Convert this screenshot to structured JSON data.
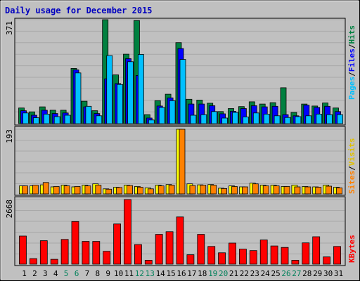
{
  "chart_data": {
    "type": "bar",
    "title": "Daily usage for December 2015",
    "categories": [
      "1",
      "2",
      "3",
      "4",
      "5",
      "6",
      "7",
      "8",
      "9",
      "10",
      "11",
      "12",
      "13",
      "14",
      "15",
      "16",
      "17",
      "18",
      "19",
      "20",
      "21",
      "22",
      "23",
      "24",
      "25",
      "26",
      "27",
      "28",
      "29",
      "30",
      "31"
    ],
    "weekend_days": [
      "5",
      "6",
      "12",
      "13",
      "19",
      "20",
      "26",
      "27"
    ],
    "panels": [
      {
        "id": "hits",
        "ymax_label": "371",
        "ymax": 371,
        "grid": true,
        "legend": [
          {
            "label": "Pages",
            "color": "#00c0ff"
          },
          {
            "label": "Files",
            "color": "#0000ff"
          },
          {
            "label": "Hits",
            "color": "#008040"
          }
        ],
        "series": [
          {
            "name": "Hits",
            "color": "#008040",
            "values": [
              56,
              42,
              60,
              48,
              48,
              197,
              80,
              46,
              371,
              174,
              248,
              368,
              32,
              82,
              105,
              289,
              87,
              84,
              73,
              43,
              54,
              61,
              78,
              70,
              75,
              128,
              40,
              70,
              63,
              74,
              56
            ]
          },
          {
            "name": "Files",
            "color": "#0000ff",
            "values": [
              46,
              30,
              48,
              36,
              38,
              192,
              60,
              36,
              160,
              143,
              232,
              172,
              20,
              63,
              92,
              268,
              70,
              70,
              64,
              35,
              44,
              54,
              64,
              60,
              62,
              32,
              28,
              66,
              58,
              62,
              43
            ]
          },
          {
            "name": "Pages",
            "color": "#00c0ff",
            "values": [
              38,
              21,
              34,
              25,
              30,
              181,
              62,
              28,
              243,
              140,
              221,
              247,
              13,
              58,
              82,
              229,
              30,
              32,
              43,
              20,
              40,
              24,
              38,
              34,
              28,
              22,
              25,
              28,
              34,
              32,
              32
            ]
          }
        ]
      },
      {
        "id": "visits",
        "ymax_label": "193",
        "ymax": 193,
        "grid": true,
        "legend": [
          {
            "label": "Sites",
            "color": "#ff8000"
          },
          {
            "label": "Visits",
            "color": "#ffff00"
          }
        ],
        "series": [
          {
            "name": "Visits",
            "color": "#ffff00",
            "values": [
              24,
              24,
              27,
              21,
              26,
              21,
              26,
              30,
              15,
              20,
              26,
              22,
              18,
              26,
              28,
              193,
              30,
              27,
              28,
              17,
              24,
              21,
              32,
              26,
              26,
              22,
              26,
              22,
              21,
              26,
              20
            ]
          },
          {
            "name": "Sites",
            "color": "#ff8000",
            "values": [
              24,
              26,
              34,
              22,
              24,
              22,
              24,
              26,
              14,
              19,
              25,
              20,
              15,
              24,
              26,
              193,
              25,
              26,
              26,
              16,
              22,
              21,
              30,
              24,
              24,
              22,
              21,
              21,
              20,
              23,
              18
            ]
          }
        ]
      },
      {
        "id": "kbytes",
        "ymax_label": "2668",
        "ymax": 2668,
        "grid": true,
        "legend": [
          {
            "label": "KBytes",
            "color": "#ff0000"
          }
        ],
        "series": [
          {
            "name": "KBytes",
            "color": "#ff0000",
            "values": [
              1160,
              230,
              970,
              200,
              1020,
              1760,
              940,
              940,
              530,
              1660,
              2668,
              810,
              160,
              1230,
              1340,
              1950,
              390,
              1230,
              730,
              470,
              870,
              620,
              560,
              1000,
              750,
              690,
              160,
              880,
              1130,
              300,
              730
            ]
          }
        ]
      }
    ]
  }
}
